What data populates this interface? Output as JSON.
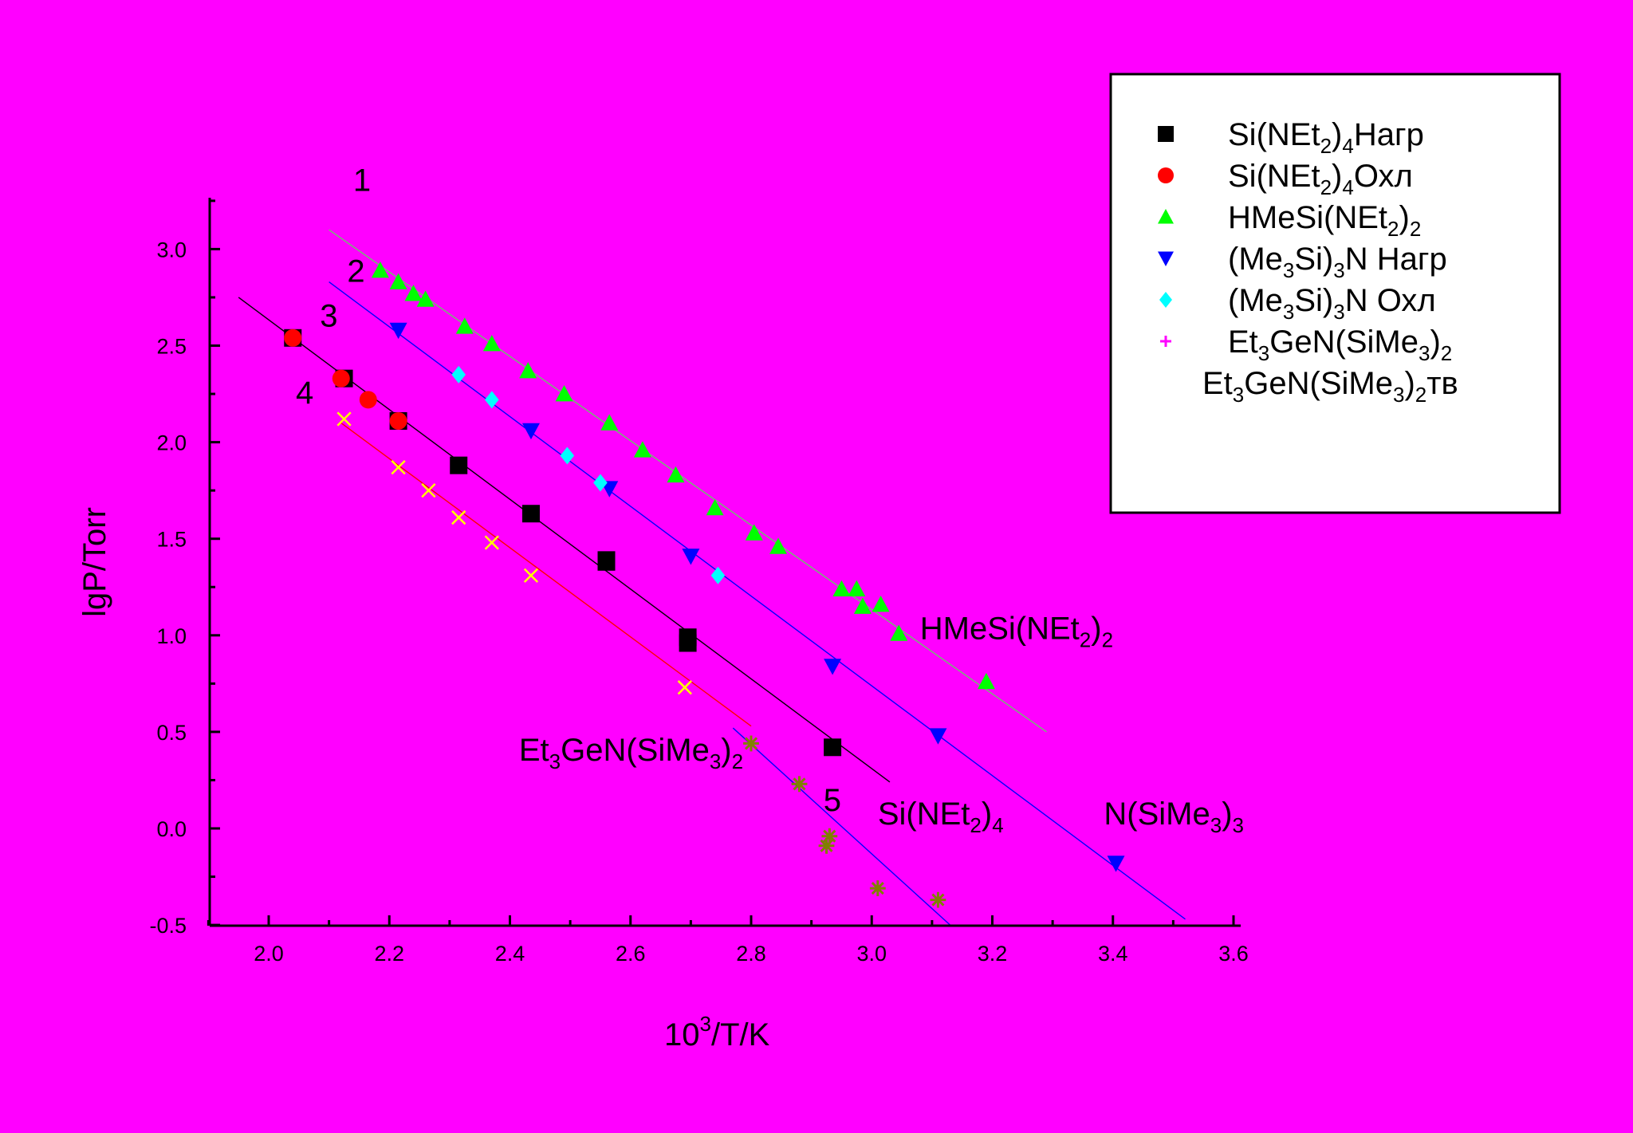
{
  "chart_data": {
    "type": "scatter",
    "xlabel": {
      "base": "10",
      "sup": "3",
      "rest": "/T/K"
    },
    "ylabel": "lgP/Torr",
    "xlim": [
      1.9,
      3.6
    ],
    "ylim": [
      -0.5,
      3.25
    ],
    "x_ticks": [
      "2.0",
      "2.2",
      "2.4",
      "2.6",
      "2.8",
      "3.0",
      "3.2",
      "3.4",
      "3.6"
    ],
    "y_ticks": [
      "-0.5",
      "0.0",
      "0.5",
      "1.0",
      "1.5",
      "2.0",
      "2.5",
      "3.0"
    ],
    "grid": false,
    "legend_position": "top-right",
    "series": [
      {
        "key": "sinet_heat",
        "name": [
          {
            "t": "Si(NEt"
          },
          {
            "t": "2",
            "s": "sub"
          },
          {
            "t": ")"
          },
          {
            "t": "4",
            "s": "sub"
          },
          {
            "t": "Нагр"
          }
        ],
        "marker": "square",
        "color": "#000000",
        "points": [
          [
            2.04,
            2.54
          ],
          [
            2.125,
            2.33
          ],
          [
            2.215,
            2.11
          ],
          [
            2.315,
            1.88
          ],
          [
            2.435,
            1.63
          ],
          [
            2.56,
            1.38
          ],
          [
            2.56,
            1.39
          ],
          [
            2.695,
            0.99
          ],
          [
            2.695,
            0.96
          ],
          [
            2.935,
            0.42
          ]
        ]
      },
      {
        "key": "sinet_cool",
        "name": [
          {
            "t": "Si(NEt"
          },
          {
            "t": "2",
            "s": "sub"
          },
          {
            "t": ")"
          },
          {
            "t": "4",
            "s": "sub"
          },
          {
            "t": "Охл"
          }
        ],
        "marker": "circle",
        "color": "#ff0000",
        "points": [
          [
            2.04,
            2.54
          ],
          [
            2.12,
            2.33
          ],
          [
            2.165,
            2.22
          ],
          [
            2.215,
            2.11
          ]
        ]
      },
      {
        "key": "hmesi",
        "name": [
          {
            "t": "HMeSi(NEt"
          },
          {
            "t": "2",
            "s": "sub"
          },
          {
            "t": ")"
          },
          {
            "t": "2",
            "s": "sub"
          }
        ],
        "marker": "triangle-up",
        "color": "#00ff00",
        "points": [
          [
            2.185,
            2.89
          ],
          [
            2.215,
            2.83
          ],
          [
            2.24,
            2.77
          ],
          [
            2.26,
            2.74
          ],
          [
            2.325,
            2.6
          ],
          [
            2.37,
            2.51
          ],
          [
            2.43,
            2.37
          ],
          [
            2.49,
            2.25
          ],
          [
            2.565,
            2.1
          ],
          [
            2.62,
            1.96
          ],
          [
            2.675,
            1.83
          ],
          [
            2.74,
            1.66
          ],
          [
            2.805,
            1.53
          ],
          [
            2.845,
            1.46
          ],
          [
            2.95,
            1.24
          ],
          [
            2.975,
            1.24
          ],
          [
            2.985,
            1.15
          ],
          [
            3.015,
            1.16
          ],
          [
            3.045,
            1.01
          ],
          [
            3.19,
            0.76
          ]
        ]
      },
      {
        "key": "me3sin_heat",
        "name": [
          {
            "t": "(Me"
          },
          {
            "t": "3",
            "s": "sub"
          },
          {
            "t": "Si)"
          },
          {
            "t": "3",
            "s": "sub"
          },
          {
            "t": "N Нагр"
          }
        ],
        "marker": "triangle-down",
        "color": "#0000ff",
        "points": [
          [
            2.215,
            2.58
          ],
          [
            2.435,
            2.06
          ],
          [
            2.565,
            1.76
          ],
          [
            2.7,
            1.41
          ],
          [
            2.935,
            0.84
          ],
          [
            3.11,
            0.48
          ],
          [
            3.405,
            -0.18
          ]
        ]
      },
      {
        "key": "me3sin_cool",
        "name": [
          {
            "t": "(Me"
          },
          {
            "t": "3",
            "s": "sub"
          },
          {
            "t": "Si)"
          },
          {
            "t": "3",
            "s": "sub"
          },
          {
            "t": "N Охл"
          }
        ],
        "marker": "diamond",
        "color": "#00ffff",
        "points": [
          [
            2.315,
            2.35
          ],
          [
            2.37,
            2.22
          ],
          [
            2.495,
            1.93
          ],
          [
            2.55,
            1.79
          ],
          [
            2.745,
            1.31
          ]
        ]
      },
      {
        "key": "etgen",
        "name": [
          {
            "t": "Et"
          },
          {
            "t": "3",
            "s": "sub"
          },
          {
            "t": "GeN(SiMe"
          },
          {
            "t": "3",
            "s": "sub"
          },
          {
            "t": ")"
          },
          {
            "t": "2",
            "s": "sub"
          }
        ],
        "marker": "x",
        "color": "#ffff00",
        "legend_marker": "plus",
        "legend_color": "#ff00ff",
        "points": [
          [
            2.125,
            2.12
          ],
          [
            2.215,
            1.87
          ],
          [
            2.265,
            1.75
          ],
          [
            2.315,
            1.61
          ],
          [
            2.37,
            1.48
          ],
          [
            2.435,
            1.31
          ],
          [
            2.69,
            0.73
          ]
        ]
      },
      {
        "key": "etgen_solid",
        "name": [
          {
            "t": "Et"
          },
          {
            "t": "3",
            "s": "sub"
          },
          {
            "t": "GeN(SiMe"
          },
          {
            "t": "3",
            "s": "sub"
          },
          {
            "t": ")"
          },
          {
            "t": "2",
            "s": "sub"
          },
          {
            "t": "тв"
          }
        ],
        "marker": "star",
        "color": "#808000",
        "legend_marker": "none",
        "points": [
          [
            2.8,
            0.44
          ],
          [
            2.88,
            0.23
          ],
          [
            2.925,
            -0.09
          ],
          [
            2.93,
            -0.04
          ],
          [
            3.01,
            -0.31
          ],
          [
            3.11,
            -0.37
          ]
        ]
      }
    ],
    "fit_lines": [
      {
        "color": "#6fbf6f",
        "x": [
          2.1,
          3.29
        ],
        "y": [
          3.1,
          0.5
        ]
      },
      {
        "color": "#0000ff",
        "x": [
          2.1,
          3.52
        ],
        "y": [
          2.83,
          -0.47
        ]
      },
      {
        "color": "#000000",
        "x": [
          1.95,
          3.03
        ],
        "y": [
          2.75,
          0.24
        ]
      },
      {
        "color": "#ff0000",
        "x": [
          2.12,
          2.8
        ],
        "y": [
          2.1,
          0.53
        ]
      },
      {
        "color": "#0000ff",
        "x": [
          2.77,
          3.13
        ],
        "y": [
          0.52,
          -0.5
        ]
      }
    ],
    "annotations": [
      {
        "key": "n1",
        "parts": [
          {
            "t": "1"
          }
        ],
        "x": 2.14,
        "y": 3.3
      },
      {
        "key": "n2",
        "parts": [
          {
            "t": "2"
          }
        ],
        "x": 2.13,
        "y": 2.83
      },
      {
        "key": "n3",
        "parts": [
          {
            "t": "3"
          }
        ],
        "x": 2.085,
        "y": 2.6
      },
      {
        "key": "n4",
        "parts": [
          {
            "t": "4"
          }
        ],
        "x": 2.045,
        "y": 2.2
      },
      {
        "key": "n5",
        "parts": [
          {
            "t": "5"
          }
        ],
        "x": 2.92,
        "y": 0.09
      },
      {
        "key": "label-hmesi",
        "parts": [
          {
            "t": "HMeSi(NEt"
          },
          {
            "t": "2",
            "s": "sub"
          },
          {
            "t": ")"
          },
          {
            "t": "2",
            "s": "sub"
          }
        ],
        "x": 3.08,
        "y": 0.98
      },
      {
        "key": "label-etgen",
        "parts": [
          {
            "t": "Et"
          },
          {
            "t": "3",
            "s": "sub"
          },
          {
            "t": "GeN(SiMe"
          },
          {
            "t": "3",
            "s": "sub"
          },
          {
            "t": ")"
          },
          {
            "t": "2",
            "s": "sub"
          }
        ],
        "x": 2.415,
        "y": 0.35
      },
      {
        "key": "label-sinet",
        "parts": [
          {
            "t": "Si(NEt"
          },
          {
            "t": "2",
            "s": "sub"
          },
          {
            "t": ")"
          },
          {
            "t": "4",
            "s": "sub"
          }
        ],
        "x": 3.01,
        "y": 0.02
      },
      {
        "key": "label-nsime",
        "parts": [
          {
            "t": "N(SiMe"
          },
          {
            "t": "3",
            "s": "sub"
          },
          {
            "t": ")"
          },
          {
            "t": "3",
            "s": "sub"
          }
        ],
        "x": 3.385,
        "y": 0.02
      }
    ]
  }
}
